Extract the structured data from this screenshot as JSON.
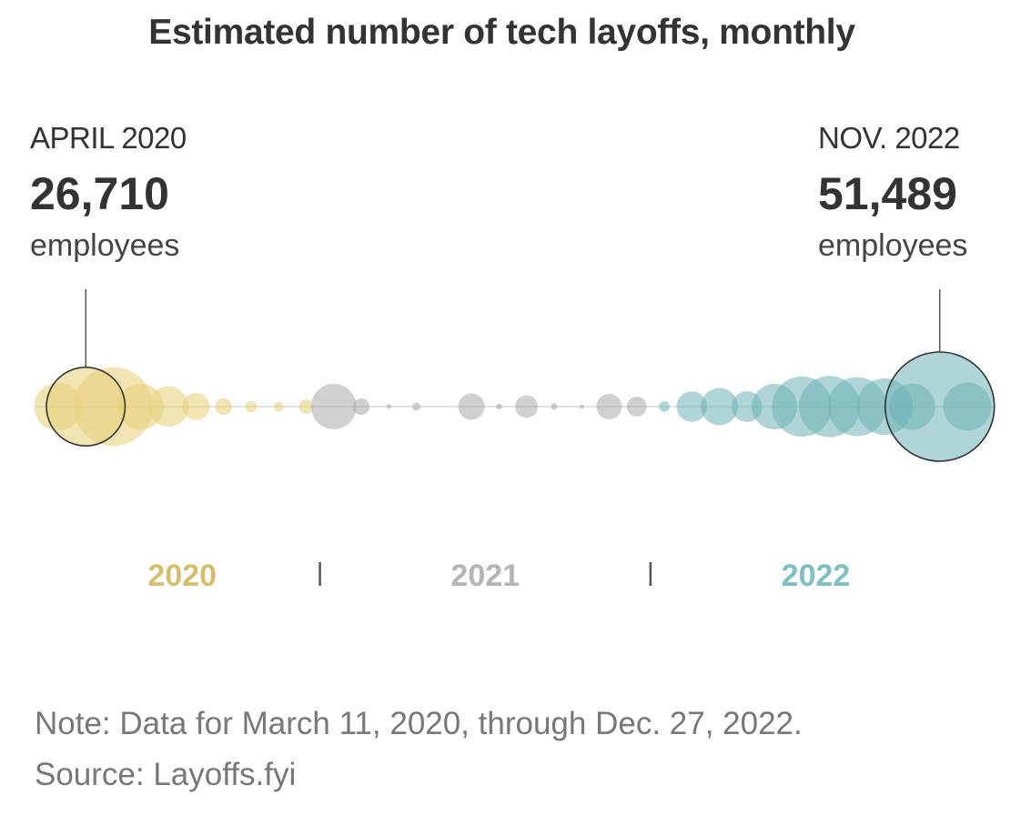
{
  "chart_data": {
    "type": "bubble-timeline",
    "title": "Estimated number of tech layoffs, monthly",
    "unit": "employees",
    "months": [
      {
        "month": "2020-03",
        "value": 10000
      },
      {
        "month": "2020-04",
        "value": 26710
      },
      {
        "month": "2020-05",
        "value": 27000
      },
      {
        "month": "2020-06",
        "value": 9100
      },
      {
        "month": "2020-07",
        "value": 7000
      },
      {
        "month": "2020-08",
        "value": 3200
      },
      {
        "month": "2020-09",
        "value": 1200
      },
      {
        "month": "2020-10",
        "value": 600
      },
      {
        "month": "2020-11",
        "value": 400
      },
      {
        "month": "2020-12",
        "value": 900
      },
      {
        "month": "2021-01",
        "value": 8900
      },
      {
        "month": "2021-02",
        "value": 1200
      },
      {
        "month": "2021-03",
        "value": 100
      },
      {
        "month": "2021-04",
        "value": 300
      },
      {
        "month": "2021-05",
        "value": 0
      },
      {
        "month": "2021-06",
        "value": 3000
      },
      {
        "month": "2021-07",
        "value": 150
      },
      {
        "month": "2021-08",
        "value": 2200
      },
      {
        "month": "2021-09",
        "value": 200
      },
      {
        "month": "2021-10",
        "value": 80
      },
      {
        "month": "2021-11",
        "value": 2800
      },
      {
        "month": "2021-12",
        "value": 1700
      },
      {
        "month": "2022-01",
        "value": 500
      },
      {
        "month": "2022-02",
        "value": 4000
      },
      {
        "month": "2022-03",
        "value": 6000
      },
      {
        "month": "2022-04",
        "value": 4100
      },
      {
        "month": "2022-05",
        "value": 9000
      },
      {
        "month": "2022-06",
        "value": 15700
      },
      {
        "month": "2022-07",
        "value": 16200
      },
      {
        "month": "2022-08",
        "value": 15000
      },
      {
        "month": "2022-09",
        "value": 13800
      },
      {
        "month": "2022-10",
        "value": 9200
      },
      {
        "month": "2022-11",
        "value": 51489
      },
      {
        "month": "2022-12",
        "value": 10000
      }
    ],
    "years": [
      {
        "label": "2020",
        "color": "#d6bf6a"
      },
      {
        "label": "2021",
        "color": "#b5b5b5"
      },
      {
        "label": "2022",
        "color": "#7fbfc3"
      }
    ],
    "highlights": [
      {
        "month": "2020-04",
        "label": "APRIL 2020",
        "value": "26,710"
      },
      {
        "month": "2022-11",
        "label": "NOV. 2022",
        "value": "51,489"
      }
    ]
  },
  "callouts": {
    "left": {
      "date": "APRIL 2020",
      "value": "26,710",
      "unit": "employees"
    },
    "right": {
      "date": "NOV. 2022",
      "value": "51,489",
      "unit": "employees"
    }
  },
  "note": "Note: Data for March 11, 2020, through Dec. 27, 2022.",
  "source": "Source: Layoffs.fyi",
  "colors": {
    "y2020_fill": "#e8cf74",
    "y2021_fill": "#a9a9a9",
    "y2022_fill": "#6db3b8",
    "text": "#333333"
  }
}
